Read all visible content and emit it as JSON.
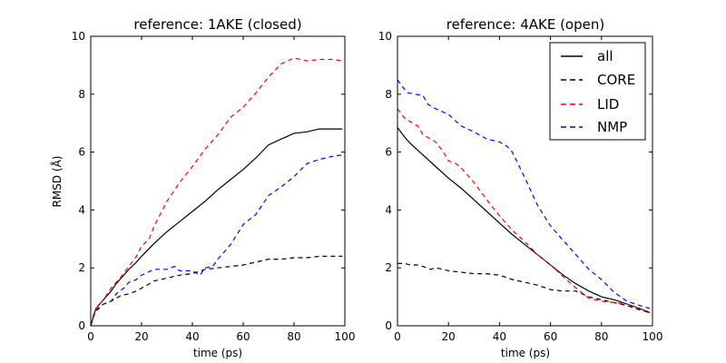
{
  "chart_data": [
    {
      "type": "line",
      "title": "reference: 1AKE (closed)",
      "xlabel": "time (ps)",
      "ylabel": "RMSD (Å)",
      "xlim": [
        0,
        100
      ],
      "ylim": [
        0,
        10
      ],
      "xticks": [
        "0",
        "20",
        "40",
        "60",
        "80",
        "100"
      ],
      "yticks": [
        "0",
        "2",
        "4",
        "6",
        "8",
        "10"
      ],
      "grid": false,
      "series": [
        {
          "name": "all",
          "color": "#000000",
          "dashed": false,
          "points": [
            [
              0,
              0
            ],
            [
              1,
              0.3
            ],
            [
              2,
              0.6
            ],
            [
              4,
              0.8
            ],
            [
              6,
              1.0
            ],
            [
              8,
              1.2
            ],
            [
              10,
              1.45
            ],
            [
              12,
              1.65
            ],
            [
              15,
              1.95
            ],
            [
              18,
              2.2
            ],
            [
              20,
              2.4
            ],
            [
              25,
              2.85
            ],
            [
              30,
              3.25
            ],
            [
              35,
              3.6
            ],
            [
              40,
              3.95
            ],
            [
              45,
              4.3
            ],
            [
              50,
              4.7
            ],
            [
              55,
              5.05
            ],
            [
              60,
              5.4
            ],
            [
              65,
              5.8
            ],
            [
              70,
              6.25
            ],
            [
              75,
              6.45
            ],
            [
              80,
              6.65
            ],
            [
              85,
              6.7
            ],
            [
              90,
              6.8
            ],
            [
              95,
              6.8
            ],
            [
              99,
              6.8
            ]
          ]
        },
        {
          "name": "CORE",
          "color": "#000000",
          "dashed": true,
          "points": [
            [
              0,
              0
            ],
            [
              1,
              0.3
            ],
            [
              2,
              0.55
            ],
            [
              5,
              0.75
            ],
            [
              8,
              0.85
            ],
            [
              10,
              0.95
            ],
            [
              12,
              1.05
            ],
            [
              15,
              1.1
            ],
            [
              18,
              1.2
            ],
            [
              20,
              1.3
            ],
            [
              25,
              1.55
            ],
            [
              30,
              1.65
            ],
            [
              35,
              1.75
            ],
            [
              40,
              1.8
            ],
            [
              45,
              1.95
            ],
            [
              50,
              2.0
            ],
            [
              55,
              2.05
            ],
            [
              60,
              2.1
            ],
            [
              65,
              2.2
            ],
            [
              70,
              2.3
            ],
            [
              75,
              2.3
            ],
            [
              80,
              2.35
            ],
            [
              85,
              2.35
            ],
            [
              90,
              2.4
            ],
            [
              95,
              2.4
            ],
            [
              99,
              2.4
            ]
          ]
        },
        {
          "name": "LID",
          "color": "#ff0000",
          "dashed": true,
          "points": [
            [
              0,
              0
            ],
            [
              1,
              0.35
            ],
            [
              2,
              0.6
            ],
            [
              5,
              0.9
            ],
            [
              8,
              1.3
            ],
            [
              10,
              1.5
            ],
            [
              12,
              1.7
            ],
            [
              15,
              2.05
            ],
            [
              18,
              2.4
            ],
            [
              20,
              2.75
            ],
            [
              23,
              3.0
            ],
            [
              25,
              3.45
            ],
            [
              30,
              4.3
            ],
            [
              35,
              4.95
            ],
            [
              40,
              5.5
            ],
            [
              45,
              6.1
            ],
            [
              50,
              6.6
            ],
            [
              55,
              7.2
            ],
            [
              60,
              7.55
            ],
            [
              65,
              8.05
            ],
            [
              70,
              8.6
            ],
            [
              75,
              9.05
            ],
            [
              80,
              9.25
            ],
            [
              85,
              9.15
            ],
            [
              90,
              9.2
            ],
            [
              95,
              9.2
            ],
            [
              99,
              9.15
            ]
          ]
        },
        {
          "name": "NMP",
          "color": "#0000ff",
          "dashed": true,
          "points": [
            [
              0,
              0
            ],
            [
              1,
              0.3
            ],
            [
              2,
              0.5
            ],
            [
              5,
              0.75
            ],
            [
              8,
              0.85
            ],
            [
              10,
              1.1
            ],
            [
              13,
              1.3
            ],
            [
              15,
              1.5
            ],
            [
              18,
              1.6
            ],
            [
              20,
              1.75
            ],
            [
              25,
              1.95
            ],
            [
              30,
              1.95
            ],
            [
              33,
              2.05
            ],
            [
              35,
              1.9
            ],
            [
              40,
              1.9
            ],
            [
              43,
              1.75
            ],
            [
              45,
              2.0
            ],
            [
              48,
              2.05
            ],
            [
              50,
              2.3
            ],
            [
              55,
              2.8
            ],
            [
              60,
              3.5
            ],
            [
              65,
              3.85
            ],
            [
              70,
              4.5
            ],
            [
              75,
              4.8
            ],
            [
              80,
              5.15
            ],
            [
              85,
              5.6
            ],
            [
              90,
              5.75
            ],
            [
              95,
              5.85
            ],
            [
              99,
              5.9
            ]
          ]
        }
      ]
    },
    {
      "type": "line",
      "title": "reference: 4AKE (open)",
      "xlabel": "time (ps)",
      "ylabel": "",
      "xlim": [
        0,
        100
      ],
      "ylim": [
        0,
        10
      ],
      "xticks": [
        "0",
        "20",
        "40",
        "60",
        "80",
        "100"
      ],
      "yticks": [
        "0",
        "2",
        "4",
        "6",
        "8",
        "10"
      ],
      "grid": false,
      "legend_position": "top-right",
      "series": [
        {
          "name": "all",
          "color": "#000000",
          "dashed": false,
          "points": [
            [
              0,
              6.85
            ],
            [
              3,
              6.5
            ],
            [
              5,
              6.3
            ],
            [
              10,
              5.9
            ],
            [
              15,
              5.5
            ],
            [
              20,
              5.1
            ],
            [
              25,
              4.75
            ],
            [
              30,
              4.35
            ],
            [
              35,
              3.95
            ],
            [
              40,
              3.55
            ],
            [
              45,
              3.15
            ],
            [
              50,
              2.8
            ],
            [
              55,
              2.45
            ],
            [
              60,
              2.1
            ],
            [
              65,
              1.75
            ],
            [
              70,
              1.45
            ],
            [
              75,
              1.2
            ],
            [
              80,
              1.0
            ],
            [
              85,
              0.9
            ],
            [
              90,
              0.75
            ],
            [
              95,
              0.6
            ],
            [
              99,
              0.45
            ]
          ]
        },
        {
          "name": "CORE",
          "color": "#000000",
          "dashed": true,
          "points": [
            [
              0,
              2.15
            ],
            [
              3,
              2.15
            ],
            [
              5,
              2.1
            ],
            [
              8,
              2.1
            ],
            [
              10,
              2.05
            ],
            [
              13,
              1.95
            ],
            [
              15,
              2.0
            ],
            [
              18,
              1.95
            ],
            [
              20,
              1.9
            ],
            [
              25,
              1.85
            ],
            [
              30,
              1.8
            ],
            [
              35,
              1.8
            ],
            [
              40,
              1.75
            ],
            [
              45,
              1.6
            ],
            [
              50,
              1.5
            ],
            [
              55,
              1.4
            ],
            [
              60,
              1.25
            ],
            [
              65,
              1.2
            ],
            [
              70,
              1.2
            ],
            [
              75,
              1.0
            ],
            [
              80,
              0.9
            ],
            [
              85,
              0.8
            ],
            [
              90,
              0.7
            ],
            [
              95,
              0.55
            ],
            [
              99,
              0.45
            ]
          ]
        },
        {
          "name": "LID",
          "color": "#ff0000",
          "dashed": true,
          "points": [
            [
              0,
              7.5
            ],
            [
              3,
              7.15
            ],
            [
              5,
              7.05
            ],
            [
              8,
              6.9
            ],
            [
              10,
              6.6
            ],
            [
              13,
              6.45
            ],
            [
              15,
              6.35
            ],
            [
              18,
              6.0
            ],
            [
              20,
              5.7
            ],
            [
              23,
              5.6
            ],
            [
              25,
              5.45
            ],
            [
              30,
              4.95
            ],
            [
              35,
              4.35
            ],
            [
              40,
              3.8
            ],
            [
              45,
              3.3
            ],
            [
              50,
              2.9
            ],
            [
              55,
              2.45
            ],
            [
              60,
              2.1
            ],
            [
              65,
              1.7
            ],
            [
              70,
              1.3
            ],
            [
              75,
              0.95
            ],
            [
              80,
              0.85
            ],
            [
              85,
              0.8
            ],
            [
              90,
              0.75
            ],
            [
              95,
              0.6
            ],
            [
              99,
              0.45
            ]
          ]
        },
        {
          "name": "NMP",
          "color": "#0000ff",
          "dashed": true,
          "points": [
            [
              0,
              8.5
            ],
            [
              2,
              8.25
            ],
            [
              4,
              8.05
            ],
            [
              7,
              8.0
            ],
            [
              10,
              7.95
            ],
            [
              12,
              7.65
            ],
            [
              15,
              7.5
            ],
            [
              20,
              7.3
            ],
            [
              25,
              6.9
            ],
            [
              30,
              6.7
            ],
            [
              35,
              6.45
            ],
            [
              40,
              6.35
            ],
            [
              43,
              6.2
            ],
            [
              45,
              6.0
            ],
            [
              50,
              5.1
            ],
            [
              55,
              4.15
            ],
            [
              60,
              3.45
            ],
            [
              65,
              2.95
            ],
            [
              70,
              2.45
            ],
            [
              75,
              1.95
            ],
            [
              80,
              1.6
            ],
            [
              85,
              1.15
            ],
            [
              90,
              0.85
            ],
            [
              95,
              0.7
            ],
            [
              99,
              0.6
            ]
          ]
        }
      ]
    }
  ]
}
